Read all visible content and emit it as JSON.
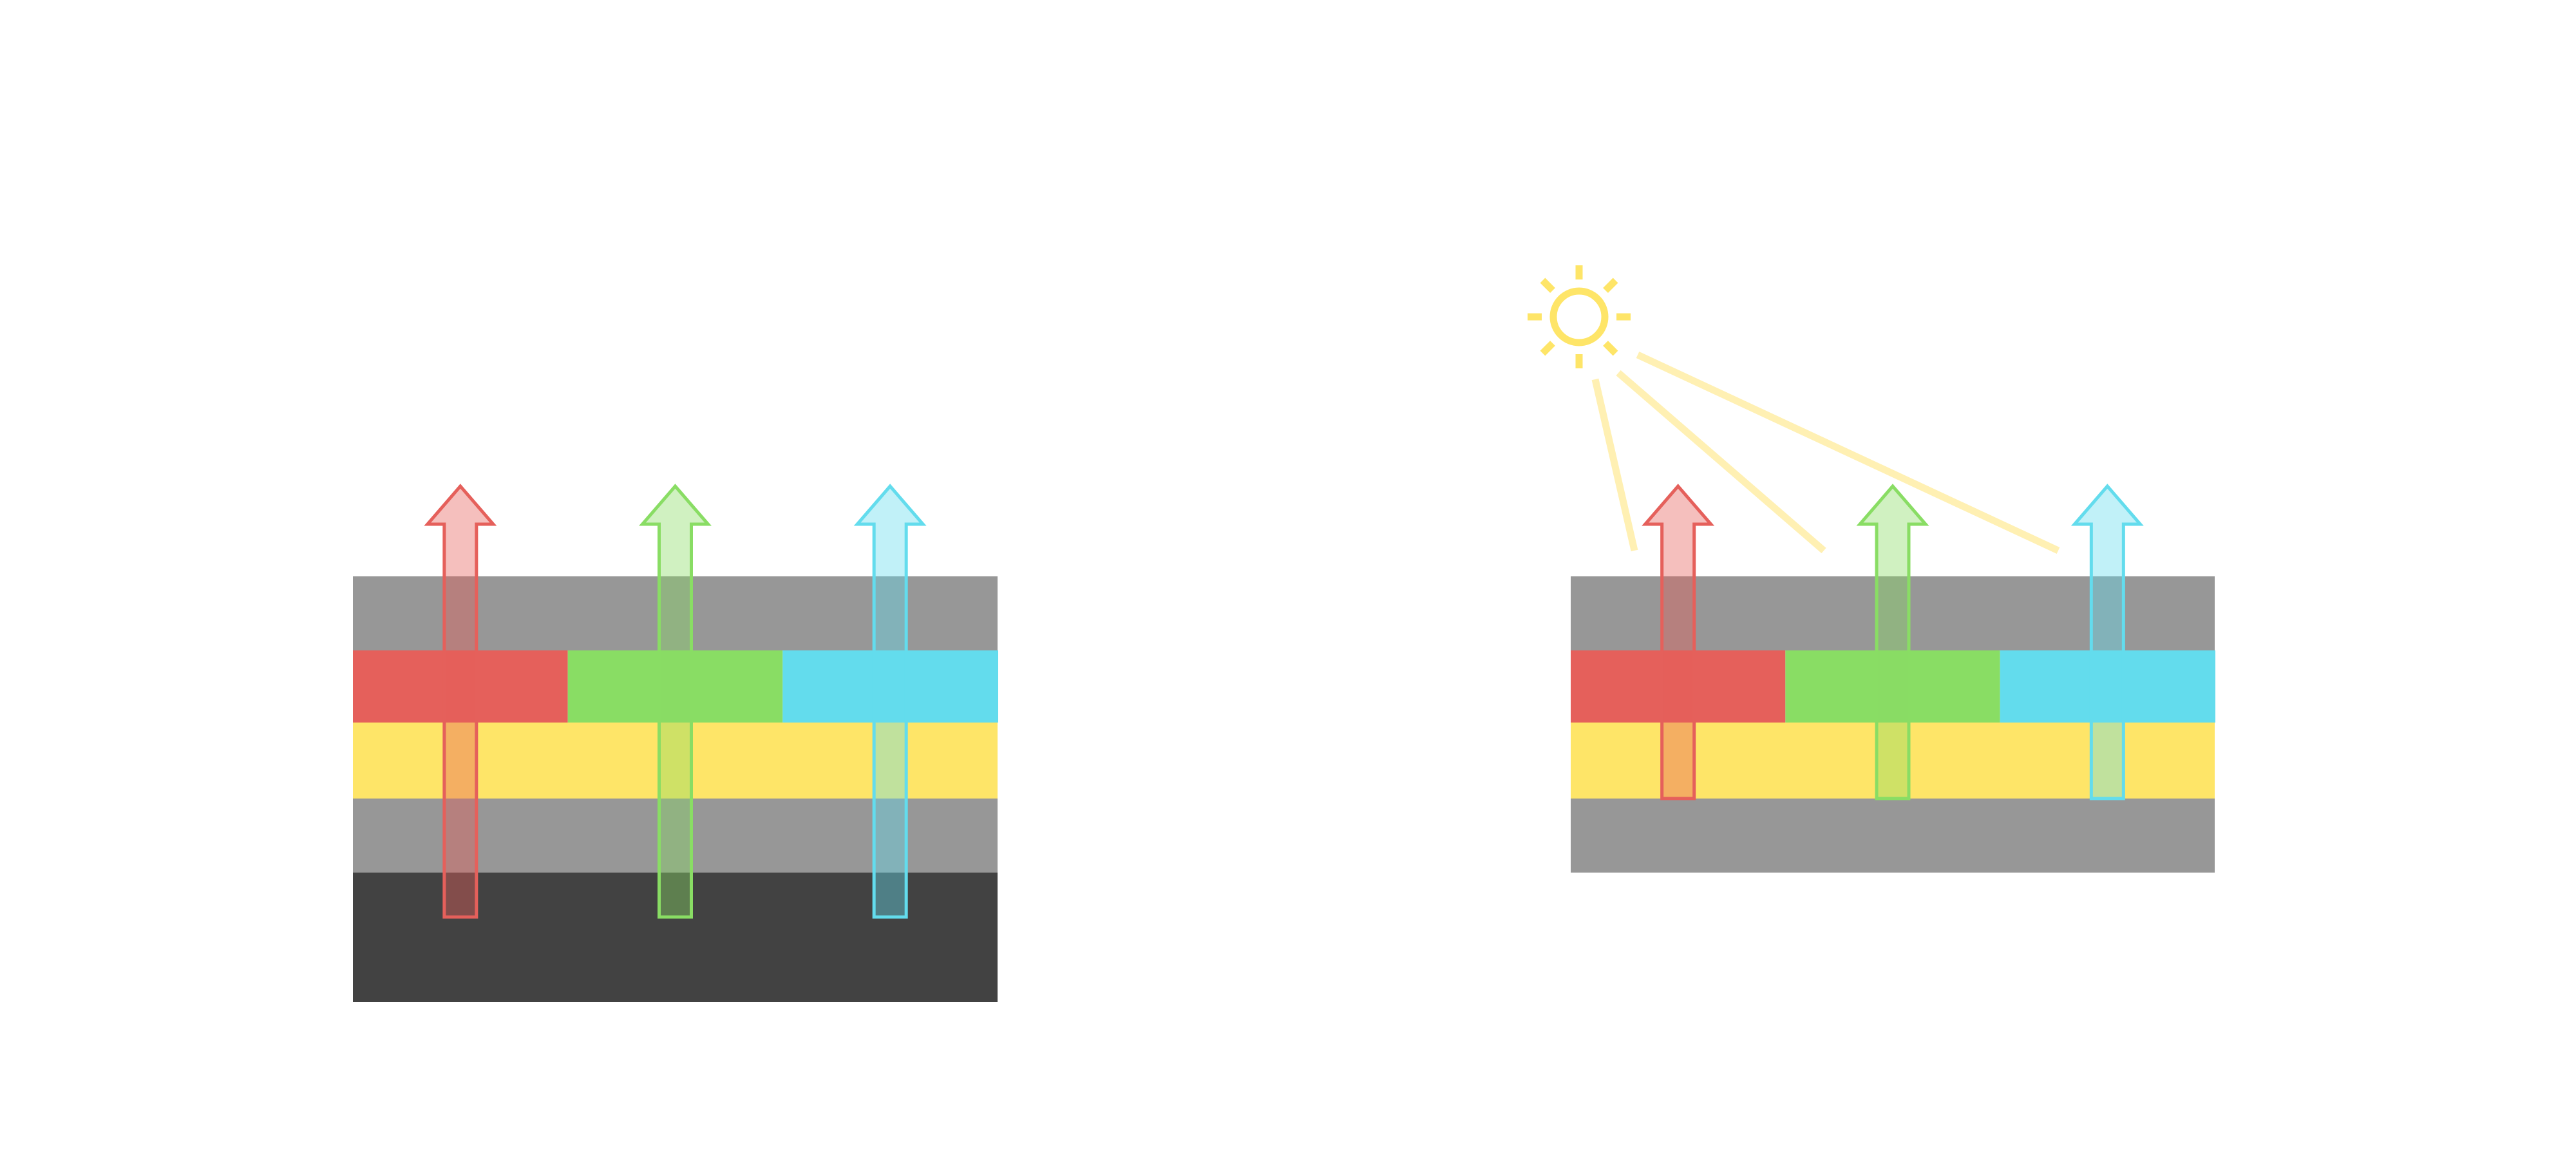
{
  "colors": {
    "background": "#ffffff",
    "gray_layer": "#979797",
    "dark_layer": "#424242",
    "red": "#e5605b",
    "green": "#89dd64",
    "cyan": "#63dced",
    "yellow": "#fee568",
    "light_beam": "#fff0b3"
  },
  "panels": [
    {
      "name": "left-stack",
      "has_sun": false,
      "has_dark_base": true
    },
    {
      "name": "right-stack",
      "has_sun": true,
      "has_dark_base": false
    }
  ],
  "icons": {
    "sun": "sun-icon",
    "arrow": "arrow-up-icon"
  }
}
